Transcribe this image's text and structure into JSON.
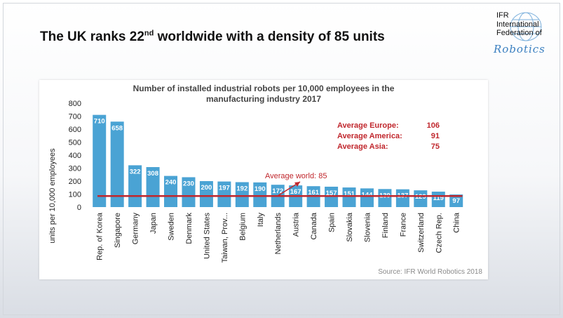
{
  "slide": {
    "title_main": "The UK ranks 22",
    "title_sup": "nd",
    "title_rest": " worldwide with a density of 85 units"
  },
  "logo": {
    "line1": "IFR",
    "line2": "International",
    "line3": "Federation of",
    "script": "Robotics"
  },
  "colors": {
    "bar": "#4aa3d4",
    "bar_label": "#ffffff",
    "avg_line": "#c0272d",
    "text": "#111111",
    "source": "#8a8a8a"
  },
  "chart_data": {
    "type": "bar",
    "title": "Number of installed industrial robots per 10,000 employees in the manufacturing industry 2017",
    "title_lines": [
      "Number of installed industrial robots per 10,000 employees in the",
      "manufacturing industry 2017"
    ],
    "ylabel": "units per 10,000 employees",
    "xlabel": "",
    "ylim": [
      0,
      800
    ],
    "yticks": [
      0,
      100,
      200,
      300,
      400,
      500,
      600,
      700,
      800
    ],
    "categories": [
      "Rep. of Korea",
      "Singapore",
      "Germany",
      "Japan",
      "Sweden",
      "Denmark",
      "United States",
      "Taiwan, Prov...",
      "Belgium",
      "Italy",
      "Netherlands",
      "Austria",
      "Canada",
      "Spain",
      "Slovakia",
      "Slovenia",
      "Finland",
      "France",
      "Switzerland",
      "Czech Rep.",
      "China"
    ],
    "values": [
      710,
      658,
      322,
      308,
      240,
      230,
      200,
      197,
      192,
      190,
      172,
      167,
      161,
      157,
      151,
      144,
      139,
      137,
      129,
      119,
      97
    ],
    "average_world": {
      "label": "Average world: 85",
      "value": 85
    },
    "regional_averages": [
      {
        "name": "Average Europe:",
        "value": "106"
      },
      {
        "name": "Average America:",
        "value": "91"
      },
      {
        "name": "Average Asia:",
        "value": "75"
      }
    ],
    "source": "Source: IFR World Robotics 2018"
  }
}
